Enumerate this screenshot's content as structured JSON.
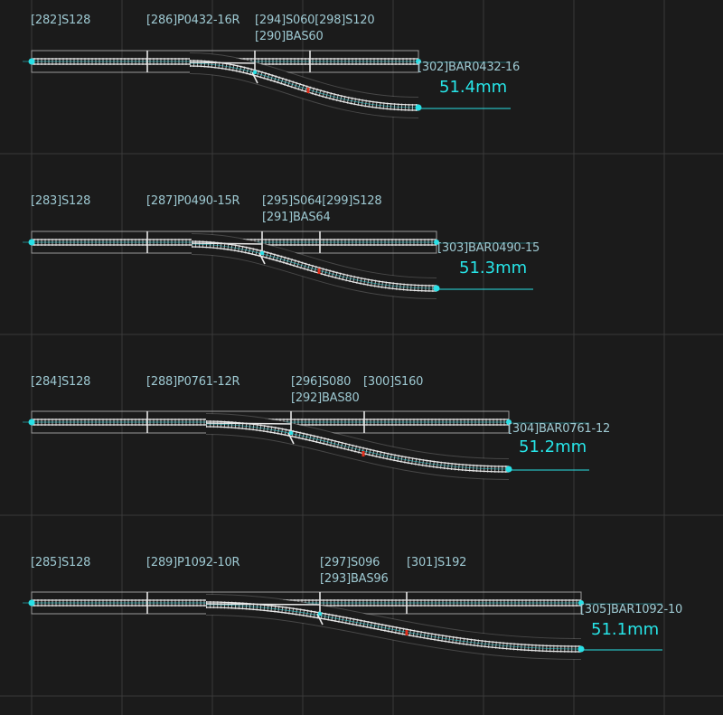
{
  "colors": {
    "background": "#1b1b1b",
    "grid": "#3a3a3a",
    "rail": "#e8e8e8",
    "tie": "#bbbbbb",
    "outline": "#9a9a9a",
    "joint": "#29e0e6",
    "label": "#9ec9d2",
    "measure": "#27e5e8",
    "marker": "#e0301e"
  },
  "layouts": [
    {
      "labels": {
        "straight_a": "[282]S128",
        "point": "[286]P0432-16R",
        "straight_b": "[294]S060[298]S120",
        "base": "[290]BAS60",
        "curve": "[302]BAR0432-16"
      },
      "measurement": "51.4mm"
    },
    {
      "labels": {
        "straight_a": "[283]S128",
        "point": "[287]P0490-15R",
        "straight_b": "[295]S064[299]S128",
        "base": "[291]BAS64",
        "curve": "[303]BAR0490-15"
      },
      "measurement": "51.3mm"
    },
    {
      "labels": {
        "straight_a": "[284]S128",
        "point": "[288]P0761-12R",
        "straight_b": "[296]S080",
        "straight_c": "[300]S160",
        "base": "[292]BAS80",
        "curve": "[304]BAR0761-12"
      },
      "measurement": "51.2mm"
    },
    {
      "labels": {
        "straight_a": "[285]S128",
        "point": "[289]P1092-10R",
        "straight_b": "[297]S096",
        "straight_c": "[301]S192",
        "base": "[293]BAS96",
        "curve": "[305]BAR1092-10"
      },
      "measurement": "51.1mm"
    }
  ]
}
